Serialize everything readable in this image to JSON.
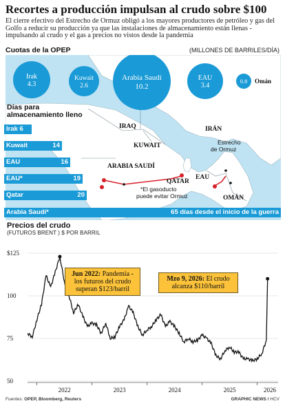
{
  "header": {
    "title": "Recortes a producción impulsan al crudo sobre $100",
    "subtitle": "El cierre efectivo del Estrecho de Ormuz obligó a los mayores productores de petróleo y gas del Golfo a reducir su producción ya que las instalaciones de almacenamiento están llenas - impulsando al crudo y el gas a precios no vistos desde la pandemia"
  },
  "quotas": {
    "title": "Cuotas de la OPEP",
    "unit": "(MILLONES DE BARRILES/DÍA)",
    "items": [
      {
        "country": "Irak",
        "value": "4.3"
      },
      {
        "country": "Kuwait",
        "value": "2.6"
      },
      {
        "country": "Arabia Saudí",
        "value": "10.2"
      },
      {
        "country": "EAU",
        "value": "3.4"
      },
      {
        "country": "Omán",
        "value": "0.8"
      }
    ]
  },
  "map": {
    "labels": {
      "iraq": "IRAQ",
      "iran": "IRÁN",
      "kuwait": "KUWAIT",
      "saudi": "ARABIA SAUDÍ",
      "hormuz": "Estrecho de Ormuz",
      "uae": "EAU",
      "qatar": "QATAR",
      "oman": "OMÁN",
      "pipeline": "*El gasoducto puede evitar Ormuz"
    },
    "colors": {
      "sea": "#bfe3f3",
      "land": "#ffffff",
      "pipeline": "#d7202a",
      "accent": "#1a9ad6"
    }
  },
  "storage": {
    "title": "Días para almacenamiento lleno",
    "items": [
      {
        "country": "Irak",
        "days": 6
      },
      {
        "country": "Kuwait",
        "days": 14
      },
      {
        "country": "EAU",
        "days": 16
      },
      {
        "country": "EAU*",
        "days": 19
      },
      {
        "country": "Qatar",
        "days": 20
      },
      {
        "country": "Arabia Saudí*",
        "days": 65
      }
    ],
    "saudi_label": "65 días desde el inicio de la guerra"
  },
  "chart_data": {
    "type": "line",
    "title": "Precios del crudo",
    "subtitle": "(FUTUROS BRENT ) $ POR BARRIL",
    "yticks": [
      "$125",
      "100",
      "75",
      "50"
    ],
    "ylim": [
      50,
      125
    ],
    "xticks": [
      "2022",
      "2023",
      "2024",
      "2025",
      "2026"
    ],
    "x": [
      "2021-11",
      "2021-12",
      "2022-01",
      "2022-02",
      "2022-03",
      "2022-04",
      "2022-05",
      "2022-06",
      "2022-07",
      "2022-08",
      "2022-09",
      "2022-10",
      "2022-11",
      "2022-12",
      "2023-01",
      "2023-02",
      "2023-03",
      "2023-04",
      "2023-05",
      "2023-06",
      "2023-07",
      "2023-08",
      "2023-09",
      "2023-10",
      "2023-11",
      "2023-12",
      "2024-01",
      "2024-02",
      "2024-03",
      "2024-04",
      "2024-05",
      "2024-06",
      "2024-07",
      "2024-08",
      "2024-09",
      "2024-10",
      "2024-11",
      "2024-12",
      "2025-01",
      "2025-02",
      "2025-03",
      "2025-04",
      "2025-05",
      "2025-06",
      "2025-07",
      "2025-08",
      "2025-09",
      "2025-10",
      "2025-11",
      "2025-12",
      "2026-01",
      "2026-02",
      "2026-03-01",
      "2026-03-09"
    ],
    "y": [
      78,
      76,
      86,
      95,
      112,
      105,
      114,
      123,
      108,
      100,
      90,
      95,
      88,
      82,
      84,
      83,
      78,
      84,
      75,
      76,
      82,
      86,
      94,
      90,
      82,
      77,
      80,
      82,
      86,
      89,
      82,
      85,
      82,
      78,
      73,
      75,
      73,
      74,
      77,
      75,
      72,
      65,
      63,
      68,
      70,
      67,
      67,
      63,
      63,
      62,
      63,
      66,
      74,
      110
    ],
    "annotations": [
      {
        "x": "2022-06",
        "bold": "Jun 2022:",
        "text": " Pandemia - los futuros del crudo superan $123/barril"
      },
      {
        "x": "2026-03-09",
        "bold": "Mzo 9, 2026:",
        "text": " El crudo alcanza $110/barril"
      }
    ],
    "line_color": "#111111",
    "grid": true
  },
  "footer": {
    "sources_label": "Fuentes:",
    "sources": "OPEP, Bloomberg, Reuters",
    "credit": "GRAPHIC NEWS",
    "credit_tag": "HCV"
  }
}
